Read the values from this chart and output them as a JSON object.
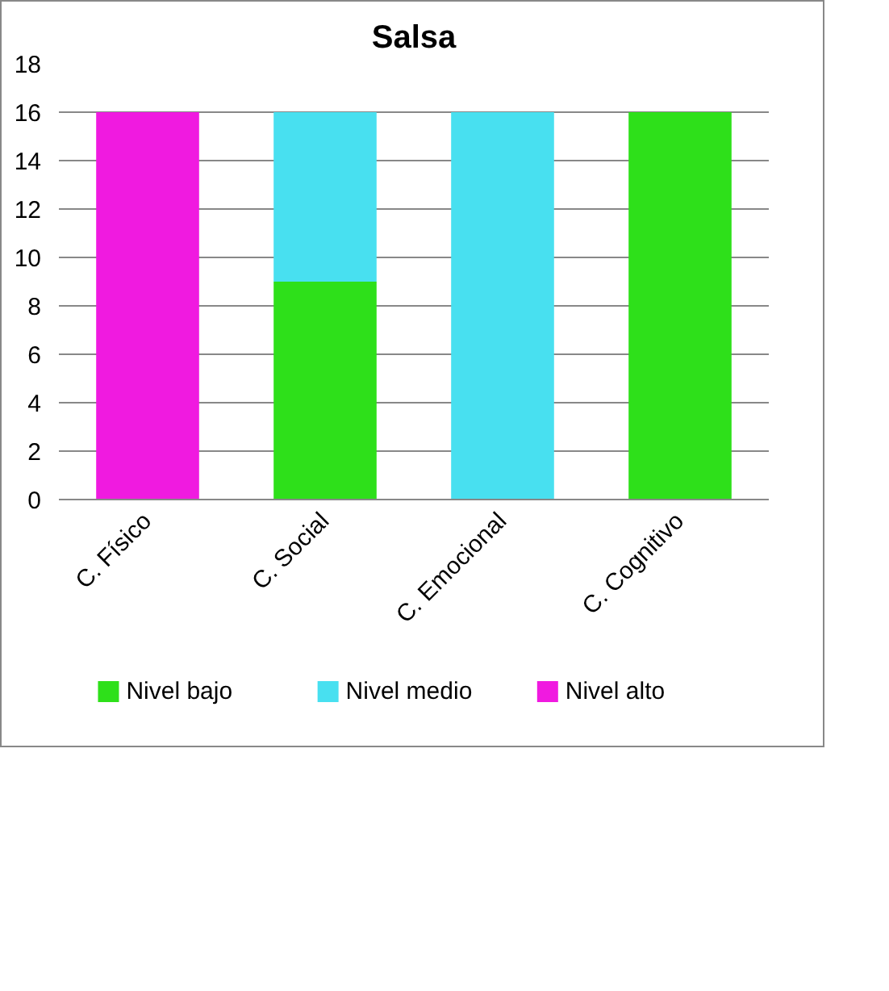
{
  "chart_data": {
    "type": "bar",
    "title": "Salsa",
    "stacked": true,
    "categories": [
      "C. Físico",
      "C. Social",
      "C. Emocional",
      "C. Cognitivo"
    ],
    "series": [
      {
        "name": "Nivel bajo",
        "color": "#2ee01a",
        "values": [
          null,
          9,
          null,
          16
        ]
      },
      {
        "name": "Nivel medio",
        "color": "#48e0f0",
        "values": [
          null,
          7,
          16,
          null
        ]
      },
      {
        "name": "Nivel alto",
        "color": "#f01ae0",
        "values": [
          16,
          null,
          null,
          null
        ]
      }
    ],
    "ylim": [
      0,
      18
    ],
    "yticks": [
      0,
      2,
      4,
      6,
      8,
      10,
      12,
      14,
      16,
      18
    ],
    "grid": "y",
    "legend": "bottom"
  }
}
